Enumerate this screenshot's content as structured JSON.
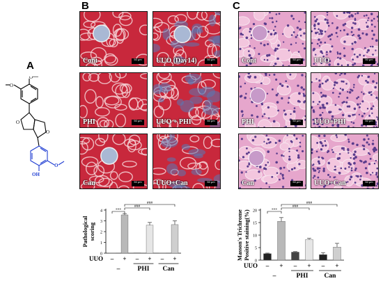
{
  "panels": {
    "a": "A",
    "b": "B",
    "c": "C"
  },
  "tiles_b": [
    {
      "label": "Cont",
      "scale": "50 μm"
    },
    {
      "label": "UUO (Day14)",
      "scale": "50 μm"
    },
    {
      "label": "PHI",
      "scale": "50 μm"
    },
    {
      "label": "UUO + PHI",
      "scale": "50 μm"
    },
    {
      "label": "Can",
      "scale": "50 μm"
    },
    {
      "label": "UUO+Can",
      "scale": "50 μm"
    }
  ],
  "tiles_c": [
    {
      "label": "Cont",
      "scale": "50 μm"
    },
    {
      "label": "UUO",
      "scale": "50 μm"
    },
    {
      "label": "PHI",
      "scale": "50 μm"
    },
    {
      "label": "UUO+PHI",
      "scale": "50 μm"
    },
    {
      "label": "Can",
      "scale": "50 μm"
    },
    {
      "label": "UUO+Can",
      "scale": "50 μm"
    }
  ],
  "colors": {
    "masson_red": "#c8283c",
    "masson_blue": "#5a78b4",
    "he_pink": "#e6a6cc",
    "he_nuclei": "#5a3c8c",
    "molecule_blue": "#1e3cd2"
  },
  "chart_data": [
    {
      "type": "bar",
      "ylabel": "Pathological scoring",
      "ylim": [
        0,
        4
      ],
      "yticks": [
        "0",
        "1",
        "2",
        "3",
        "4"
      ],
      "row_label": "UUO",
      "signs": [
        "–",
        "+",
        "–",
        "+",
        "–",
        "+"
      ],
      "groups": [
        "–",
        "PHI",
        "Can"
      ],
      "values": [
        0.02,
        3.55,
        0.03,
        2.6,
        0.02,
        2.65
      ],
      "errors": [
        0,
        0.12,
        0,
        0.25,
        0,
        0.35
      ],
      "significance": [
        "***",
        "###",
        "###"
      ]
    },
    {
      "type": "bar",
      "ylabel": "Masson's Trichrome Positive staining(%)",
      "ylim": [
        0,
        20
      ],
      "yticks": [
        "0",
        "5",
        "10",
        "15",
        "20"
      ],
      "row_label": "UUO",
      "signs": [
        "–",
        "+",
        "–",
        "+",
        "–",
        "+"
      ],
      "groups": [
        "–",
        "PHI",
        "Can"
      ],
      "values": [
        2.6,
        15.5,
        3.2,
        8.2,
        2.2,
        5.2
      ],
      "errors": [
        0.2,
        1.5,
        0.2,
        0.5,
        0.8,
        1.5
      ],
      "significance": [
        "***",
        "###",
        "###"
      ]
    }
  ]
}
